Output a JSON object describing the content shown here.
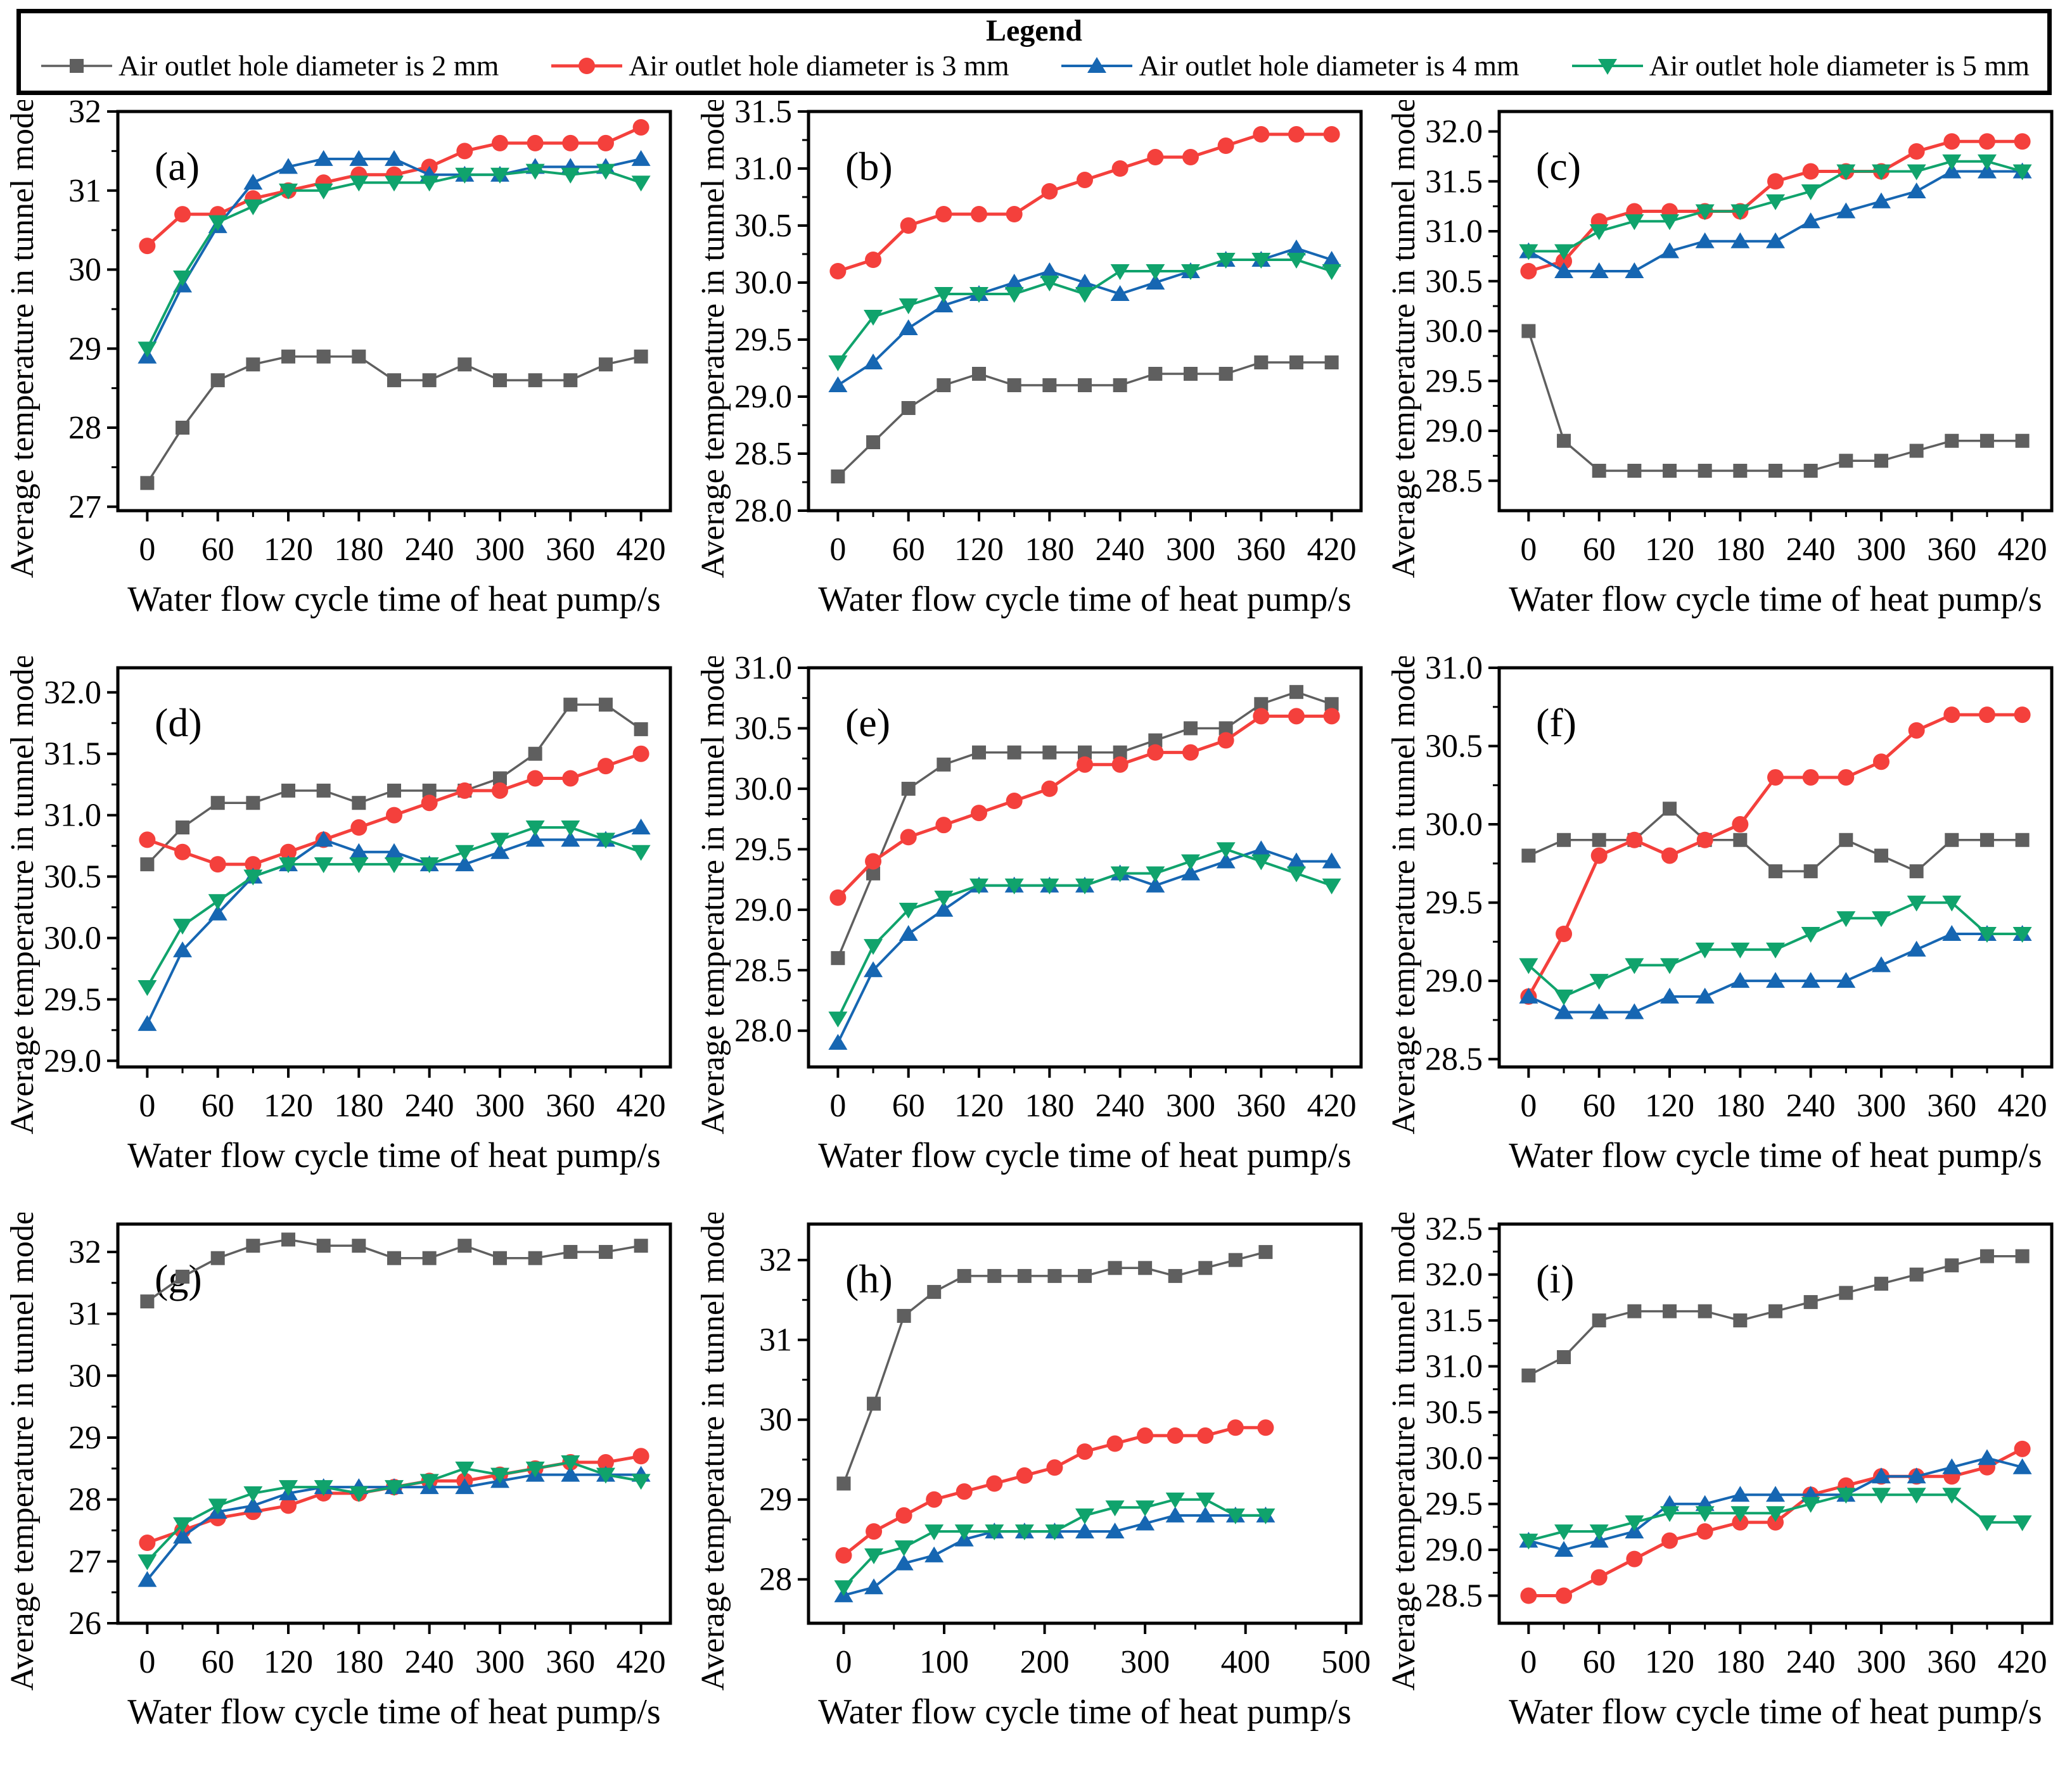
{
  "legend": {
    "title": "Legend"
  },
  "chart_data": {
    "type": "line",
    "x": [
      0,
      30,
      60,
      90,
      120,
      150,
      180,
      210,
      240,
      270,
      300,
      330,
      360,
      390,
      420
    ],
    "xlabel": "Water flow cycle time of heat pump/s",
    "ylabel": "Average temperature in tunnel model/°C",
    "legend_position": "top",
    "grid": false,
    "series": [
      {
        "key": "d2",
        "name": "Air outlet hole diameter is 2 mm",
        "color": "#5f5f5f",
        "marker": "square",
        "line_width": 3.5
      },
      {
        "key": "d3",
        "name": "Air outlet hole diameter is 3 mm",
        "color": "#f4403c",
        "marker": "circle",
        "line_width": 5
      },
      {
        "key": "d4",
        "name": "Air outlet hole diameter is 4 mm",
        "color": "#1666b2",
        "marker": "triangle-up",
        "line_width": 4
      },
      {
        "key": "d5",
        "name": "Air outlet hole diameter is 5 mm",
        "color": "#10a36c",
        "marker": "triangle-down",
        "line_width": 4
      }
    ],
    "panels": [
      {
        "label": "(a)",
        "ylim": [
          26.95,
          32.0
        ],
        "yticks": [
          27,
          28,
          29,
          30,
          31,
          32
        ],
        "ydec": 0,
        "xlim": [
          -25,
          445
        ],
        "xticks": [
          0,
          60,
          120,
          180,
          240,
          300,
          360,
          420
        ],
        "values": {
          "d2": [
            27.3,
            28.0,
            28.6,
            28.8,
            28.9,
            28.9,
            28.9,
            28.6,
            28.6,
            28.8,
            28.6,
            28.6,
            28.6,
            28.8,
            28.9
          ],
          "d3": [
            30.3,
            30.7,
            30.7,
            30.9,
            31.0,
            31.1,
            31.2,
            31.2,
            31.3,
            31.5,
            31.6,
            31.6,
            31.6,
            31.6,
            31.8
          ],
          "d4": [
            28.9,
            29.8,
            30.55,
            31.1,
            31.3,
            31.4,
            31.4,
            31.4,
            31.2,
            31.2,
            31.2,
            31.3,
            31.3,
            31.3,
            31.4
          ],
          "d5": [
            29.0,
            29.9,
            30.6,
            30.8,
            31.0,
            31.0,
            31.1,
            31.1,
            31.1,
            31.2,
            31.2,
            31.25,
            31.2,
            31.25,
            31.1
          ]
        }
      },
      {
        "label": "(b)",
        "ylim": [
          28.0,
          31.5
        ],
        "yticks": [
          28.0,
          28.5,
          29.0,
          29.5,
          30.0,
          30.5,
          31.0,
          31.5
        ],
        "ydec": 1,
        "xlim": [
          -25,
          445
        ],
        "xticks": [
          0,
          60,
          120,
          180,
          240,
          300,
          360,
          420
        ],
        "values": {
          "d2": [
            28.3,
            28.6,
            28.9,
            29.1,
            29.2,
            29.1,
            29.1,
            29.1,
            29.1,
            29.2,
            29.2,
            29.2,
            29.3,
            29.3,
            29.3
          ],
          "d3": [
            30.1,
            30.2,
            30.5,
            30.6,
            30.6,
            30.6,
            30.8,
            30.9,
            31.0,
            31.1,
            31.1,
            31.2,
            31.3,
            31.3,
            31.3
          ],
          "d4": [
            29.1,
            29.3,
            29.6,
            29.8,
            29.9,
            30.0,
            30.1,
            30.0,
            29.9,
            30.0,
            30.1,
            30.2,
            30.2,
            30.3,
            30.2
          ],
          "d5": [
            29.3,
            29.7,
            29.8,
            29.9,
            29.9,
            29.9,
            30.0,
            29.9,
            30.1,
            30.1,
            30.1,
            30.2,
            30.2,
            30.2,
            30.1
          ]
        }
      },
      {
        "label": "(c)",
        "ylim": [
          28.2,
          32.2
        ],
        "yticks": [
          28.5,
          29.0,
          29.5,
          30.0,
          30.5,
          31.0,
          31.5,
          32.0
        ],
        "ydec": 1,
        "xlim": [
          -25,
          445
        ],
        "xticks": [
          0,
          60,
          120,
          180,
          240,
          300,
          360,
          420
        ],
        "values": {
          "d2": [
            30.0,
            28.9,
            28.6,
            28.6,
            28.6,
            28.6,
            28.6,
            28.6,
            28.6,
            28.7,
            28.7,
            28.8,
            28.9,
            28.9,
            28.9
          ],
          "d3": [
            30.6,
            30.7,
            31.1,
            31.2,
            31.2,
            31.2,
            31.2,
            31.5,
            31.6,
            31.6,
            31.6,
            31.8,
            31.9,
            31.9,
            31.9
          ],
          "d4": [
            30.8,
            30.6,
            30.6,
            30.6,
            30.8,
            30.9,
            30.9,
            30.9,
            31.1,
            31.2,
            31.3,
            31.4,
            31.6,
            31.6,
            31.6
          ],
          "d5": [
            30.8,
            30.8,
            31.0,
            31.1,
            31.1,
            31.2,
            31.2,
            31.3,
            31.4,
            31.6,
            31.6,
            31.6,
            31.7,
            31.7,
            31.6
          ]
        }
      },
      {
        "label": "(d)",
        "ylim": [
          28.95,
          32.2
        ],
        "yticks": [
          29.0,
          29.5,
          30.0,
          30.5,
          31.0,
          31.5,
          32.0
        ],
        "ydec": 1,
        "xlim": [
          -25,
          445
        ],
        "xticks": [
          0,
          60,
          120,
          180,
          240,
          300,
          360,
          420
        ],
        "values": {
          "d2": [
            30.6,
            30.9,
            31.1,
            31.1,
            31.2,
            31.2,
            31.1,
            31.2,
            31.2,
            31.2,
            31.3,
            31.5,
            31.9,
            31.9,
            31.7
          ],
          "d3": [
            30.8,
            30.7,
            30.6,
            30.6,
            30.7,
            30.8,
            30.9,
            31.0,
            31.1,
            31.2,
            31.2,
            31.3,
            31.3,
            31.4,
            31.5
          ],
          "d4": [
            29.3,
            29.9,
            30.2,
            30.5,
            30.6,
            30.8,
            30.7,
            30.7,
            30.6,
            30.6,
            30.7,
            30.8,
            30.8,
            30.8,
            30.9
          ],
          "d5": [
            29.6,
            30.1,
            30.3,
            30.5,
            30.6,
            30.6,
            30.6,
            30.6,
            30.6,
            30.7,
            30.8,
            30.9,
            30.9,
            30.8,
            30.7
          ]
        }
      },
      {
        "label": "(e)",
        "ylim": [
          27.7,
          31.0
        ],
        "yticks": [
          28.0,
          28.5,
          29.0,
          29.5,
          30.0,
          30.5,
          31.0
        ],
        "ydec": 1,
        "xlim": [
          -25,
          445
        ],
        "xticks": [
          0,
          60,
          120,
          180,
          240,
          300,
          360,
          420
        ],
        "values": {
          "d2": [
            28.6,
            29.3,
            30.0,
            30.2,
            30.3,
            30.3,
            30.3,
            30.3,
            30.3,
            30.4,
            30.5,
            30.5,
            30.7,
            30.8,
            30.7
          ],
          "d3": [
            29.1,
            29.4,
            29.6,
            29.7,
            29.8,
            29.9,
            30.0,
            30.2,
            30.2,
            30.3,
            30.3,
            30.4,
            30.6,
            30.6,
            30.6
          ],
          "d4": [
            27.9,
            28.5,
            28.8,
            29.0,
            29.2,
            29.2,
            29.2,
            29.2,
            29.3,
            29.2,
            29.3,
            29.4,
            29.5,
            29.4,
            29.4
          ],
          "d5": [
            28.1,
            28.7,
            29.0,
            29.1,
            29.2,
            29.2,
            29.2,
            29.2,
            29.3,
            29.3,
            29.4,
            29.5,
            29.4,
            29.3,
            29.2
          ]
        }
      },
      {
        "label": "(f)",
        "ylim": [
          28.45,
          31.0
        ],
        "yticks": [
          28.5,
          29.0,
          29.5,
          30.0,
          30.5,
          31.0
        ],
        "ydec": 1,
        "xlim": [
          -25,
          445
        ],
        "xticks": [
          0,
          60,
          120,
          180,
          240,
          300,
          360,
          420
        ],
        "values": {
          "d2": [
            29.8,
            29.9,
            29.9,
            29.9,
            30.1,
            29.9,
            29.9,
            29.7,
            29.7,
            29.9,
            29.8,
            29.7,
            29.9,
            29.9,
            29.9
          ],
          "d3": [
            28.9,
            29.3,
            29.8,
            29.9,
            29.8,
            29.9,
            30.0,
            30.3,
            30.3,
            30.3,
            30.4,
            30.6,
            30.7,
            30.7,
            30.7
          ],
          "d4": [
            28.9,
            28.8,
            28.8,
            28.8,
            28.9,
            28.9,
            29.0,
            29.0,
            29.0,
            29.0,
            29.1,
            29.2,
            29.3,
            29.3,
            29.3
          ],
          "d5": [
            29.1,
            28.9,
            29.0,
            29.1,
            29.1,
            29.2,
            29.2,
            29.2,
            29.3,
            29.4,
            29.4,
            29.5,
            29.5,
            29.3,
            29.3
          ]
        }
      },
      {
        "label": "(g)",
        "ylim": [
          26.0,
          32.45
        ],
        "yticks": [
          26,
          27,
          28,
          29,
          30,
          31,
          32
        ],
        "ydec": 0,
        "xlim": [
          -25,
          445
        ],
        "xticks": [
          0,
          60,
          120,
          180,
          240,
          300,
          360,
          420
        ],
        "values": {
          "d2": [
            31.2,
            31.6,
            31.9,
            32.1,
            32.2,
            32.1,
            32.1,
            31.9,
            31.9,
            32.1,
            31.9,
            31.9,
            32.0,
            32.0,
            32.1
          ],
          "d3": [
            27.3,
            27.5,
            27.7,
            27.8,
            27.9,
            28.1,
            28.1,
            28.2,
            28.3,
            28.3,
            28.4,
            28.5,
            28.6,
            28.6,
            28.7
          ],
          "d4": [
            26.7,
            27.4,
            27.8,
            27.9,
            28.1,
            28.2,
            28.2,
            28.2,
            28.2,
            28.2,
            28.3,
            28.4,
            28.4,
            28.4,
            28.4
          ],
          "d5": [
            27.0,
            27.6,
            27.9,
            28.1,
            28.2,
            28.2,
            28.1,
            28.2,
            28.3,
            28.5,
            28.4,
            28.5,
            28.6,
            28.4,
            28.3
          ]
        }
      },
      {
        "label": "(h)",
        "ylim": [
          27.45,
          32.45
        ],
        "yticks": [
          28,
          29,
          30,
          31,
          32
        ],
        "ydec": 0,
        "xlim": [
          -35,
          515
        ],
        "xticks": [
          0,
          100,
          200,
          300,
          400,
          500
        ],
        "values": {
          "d2": [
            29.2,
            30.2,
            31.3,
            31.6,
            31.8,
            31.8,
            31.8,
            31.8,
            31.8,
            31.9,
            31.9,
            31.8,
            31.9,
            32.0,
            32.1
          ],
          "d3": [
            28.3,
            28.6,
            28.8,
            29.0,
            29.1,
            29.2,
            29.3,
            29.4,
            29.6,
            29.7,
            29.8,
            29.8,
            29.8,
            29.9,
            29.9
          ],
          "d4": [
            27.8,
            27.9,
            28.2,
            28.3,
            28.5,
            28.6,
            28.6,
            28.6,
            28.6,
            28.6,
            28.7,
            28.8,
            28.8,
            28.8,
            28.8
          ],
          "d5": [
            27.9,
            28.3,
            28.4,
            28.6,
            28.6,
            28.6,
            28.6,
            28.6,
            28.8,
            28.9,
            28.9,
            29.0,
            29.0,
            28.8,
            28.8
          ]
        }
      },
      {
        "label": "(i)",
        "ylim": [
          28.2,
          32.55
        ],
        "yticks": [
          28.5,
          29.0,
          29.5,
          30.0,
          30.5,
          31.0,
          31.5,
          32.0,
          32.5
        ],
        "ydec": 1,
        "xlim": [
          -25,
          445
        ],
        "xticks": [
          0,
          60,
          120,
          180,
          240,
          300,
          360,
          420
        ],
        "values": {
          "d2": [
            30.9,
            31.1,
            31.5,
            31.6,
            31.6,
            31.6,
            31.5,
            31.6,
            31.7,
            31.8,
            31.9,
            32.0,
            32.1,
            32.2,
            32.2
          ],
          "d3": [
            28.5,
            28.5,
            28.7,
            28.9,
            29.1,
            29.2,
            29.3,
            29.3,
            29.6,
            29.7,
            29.8,
            29.8,
            29.8,
            29.9,
            30.1
          ],
          "d4": [
            29.1,
            29.0,
            29.1,
            29.2,
            29.5,
            29.5,
            29.6,
            29.6,
            29.6,
            29.6,
            29.8,
            29.8,
            29.9,
            30.0,
            29.9
          ],
          "d5": [
            29.1,
            29.2,
            29.2,
            29.3,
            29.4,
            29.4,
            29.4,
            29.4,
            29.5,
            29.6,
            29.6,
            29.6,
            29.6,
            29.3,
            29.3
          ]
        }
      }
    ]
  }
}
